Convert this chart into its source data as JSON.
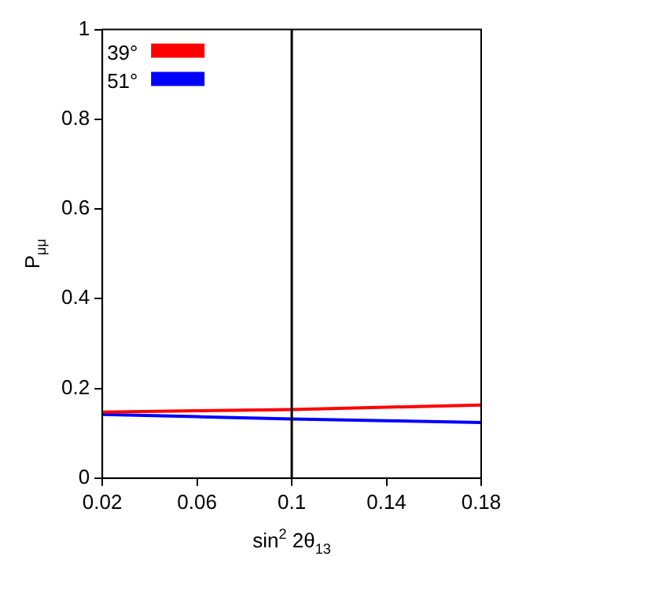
{
  "chart_data": {
    "type": "line",
    "xlabel": "sin$^{2}$ 2θ$_{13}$",
    "ylabel": "P$_{μμ}$",
    "x": [
      0.02,
      0.06,
      0.1,
      0.14,
      0.18
    ],
    "series": [
      {
        "name": "39°",
        "color": "#ff0000",
        "values": [
          0.147,
          0.15,
          0.153,
          0.158,
          0.163
        ]
      },
      {
        "name": "51°",
        "color": "#0000ff",
        "values": [
          0.142,
          0.137,
          0.132,
          0.128,
          0.124
        ]
      }
    ],
    "xlim": [
      0.02,
      0.18
    ],
    "xticks": [
      0.02,
      0.06,
      0.1,
      0.14,
      0.18
    ],
    "ylim": [
      0,
      1
    ],
    "yticks": [
      0,
      0.2,
      0.4,
      0.6,
      0.8,
      1
    ],
    "ref_lines": [
      {
        "axis": "x",
        "value": 0.1,
        "color": "#000000"
      }
    ],
    "grid": false,
    "legend": "top left",
    "marker": "none",
    "line_style": "solid"
  }
}
